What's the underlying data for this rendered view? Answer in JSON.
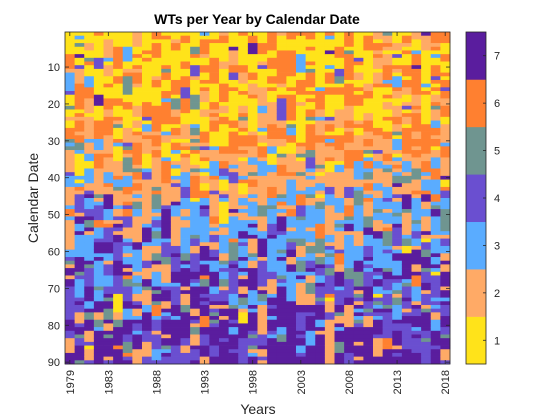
{
  "chart_data": {
    "type": "heatmap",
    "title": "WTs per Year by Calendar Date",
    "xlabel": "Years",
    "ylabel": "Calendar Date",
    "x_range": [
      1979,
      2018
    ],
    "y_range": [
      1,
      90
    ],
    "x_ticks": [
      "1979",
      "1983",
      "1988",
      "1993",
      "1998",
      "2003",
      "2008",
      "2013",
      "2018"
    ],
    "y_ticks": [
      "10",
      "20",
      "30",
      "40",
      "50",
      "60",
      "70",
      "80",
      "90"
    ],
    "colorbar": {
      "levels": [
        1,
        2,
        3,
        4,
        5,
        6,
        7
      ],
      "labels": [
        "1",
        "2",
        "3",
        "4",
        "5",
        "6",
        "7"
      ],
      "colors": [
        "#ffe31a",
        "#ffaa66",
        "#5aacff",
        "#6a4fd0",
        "#6f9590",
        "#ff8030",
        "#5a1d9e"
      ]
    },
    "value_profile_by_date": [
      {
        "date_from": 1,
        "date_to": 30,
        "dominant_levels": [
          1,
          6,
          2
        ]
      },
      {
        "date_from": 30,
        "date_to": 50,
        "dominant_levels": [
          2,
          3,
          6,
          1
        ]
      },
      {
        "date_from": 50,
        "date_to": 90,
        "dominant_levels": [
          7,
          4,
          3
        ]
      }
    ]
  }
}
